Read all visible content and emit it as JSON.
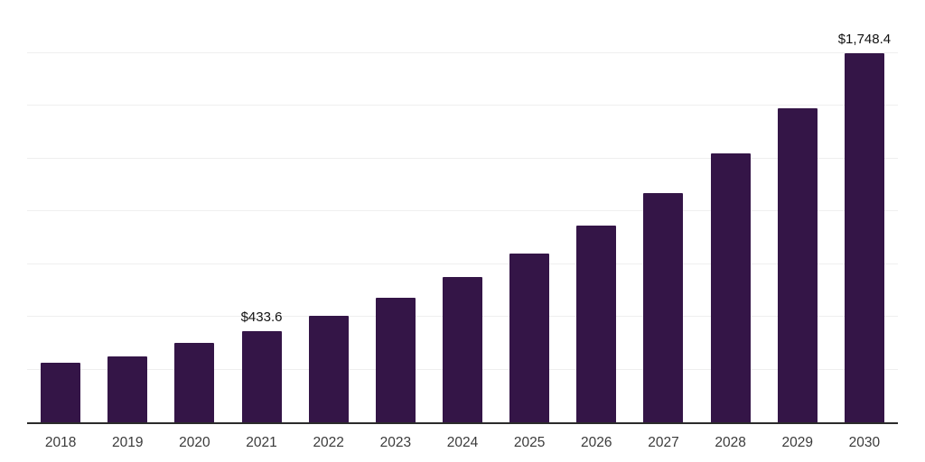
{
  "chart_data": {
    "type": "bar",
    "title": "",
    "categories": [
      "2018",
      "2019",
      "2020",
      "2021",
      "2022",
      "2023",
      "2024",
      "2025",
      "2026",
      "2027",
      "2028",
      "2029",
      "2030"
    ],
    "values": [
      280.0,
      310.5,
      376.6,
      433.6,
      503.7,
      588.0,
      688.0,
      798.2,
      932.3,
      1086.7,
      1271.6,
      1485.3,
      1748.4
    ],
    "bar_labels": [
      "",
      "",
      "",
      "$433.6",
      "",
      "",
      "",
      "",
      "",
      "",
      "",
      "",
      "$1,748.4"
    ],
    "value_prefix": "$",
    "xlabel": "",
    "ylabel": "",
    "ylim": [
      0,
      2000
    ],
    "gridline_step": 250,
    "grid": "horizontal-only",
    "legend_position": "none",
    "colors": {
      "bar": "#341547",
      "axis_line": "#2b2b2b",
      "gridline": "#efefef",
      "data_label": "#111111",
      "tick_label": "#3b3b3b",
      "background": "#ffffff"
    }
  }
}
